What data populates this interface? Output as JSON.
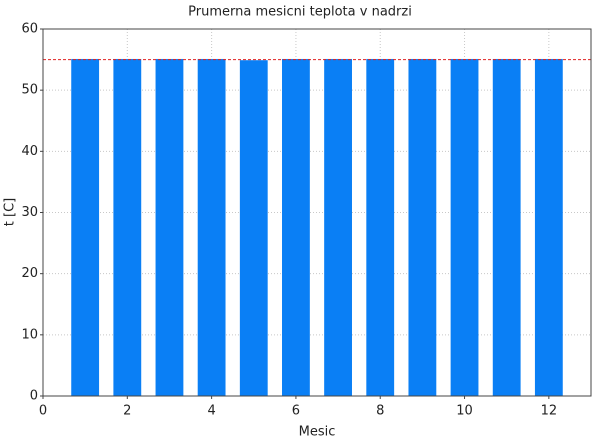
{
  "chart_data": {
    "type": "bar",
    "title": "Prumerna mesicni teplota v nadrzi",
    "x_label": "Mesic",
    "y_label": "t [C]",
    "x": [
      1,
      2,
      3,
      4,
      5,
      6,
      7,
      8,
      9,
      10,
      11,
      12
    ],
    "values": [
      55.1,
      55.1,
      55.1,
      55.1,
      54.9,
      55.1,
      55.1,
      55.1,
      55.1,
      55.1,
      55.1,
      55.1
    ],
    "color": "#0a7ff5",
    "reference_line": 55,
    "reference_color": "#e02020",
    "xlim": [
      0,
      13
    ],
    "xticks": [
      0,
      2,
      4,
      6,
      8,
      10,
      12
    ],
    "ylim": [
      0,
      60
    ],
    "yticks": [
      0,
      10,
      20,
      30,
      40,
      50,
      60
    ],
    "grid": true
  }
}
